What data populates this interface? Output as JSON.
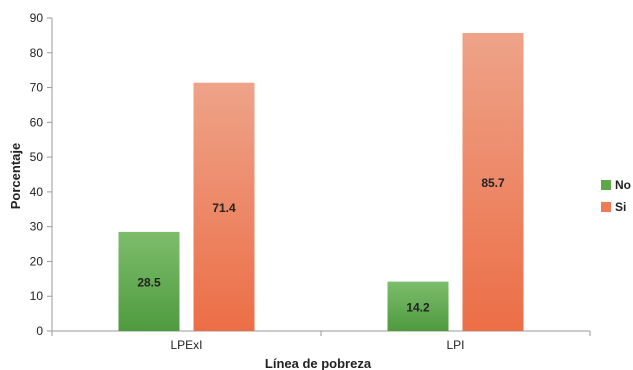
{
  "chart_data": {
    "type": "bar",
    "categories": [
      "LPExI",
      "LPI"
    ],
    "series": [
      {
        "name": "No",
        "values": [
          28.5,
          14.2
        ],
        "color": "#5ea84a"
      },
      {
        "name": "Si",
        "values": [
          71.4,
          85.7
        ],
        "color": "#ee7a56"
      }
    ],
    "xlabel": "Línea de pobreza",
    "ylabel": "Porcentaje",
    "ylim": [
      0,
      90
    ],
    "yticks": [
      0,
      10,
      20,
      30,
      40,
      50,
      60,
      70,
      80,
      90
    ],
    "grid": false,
    "legend_position": "right",
    "data_labels": true
  }
}
